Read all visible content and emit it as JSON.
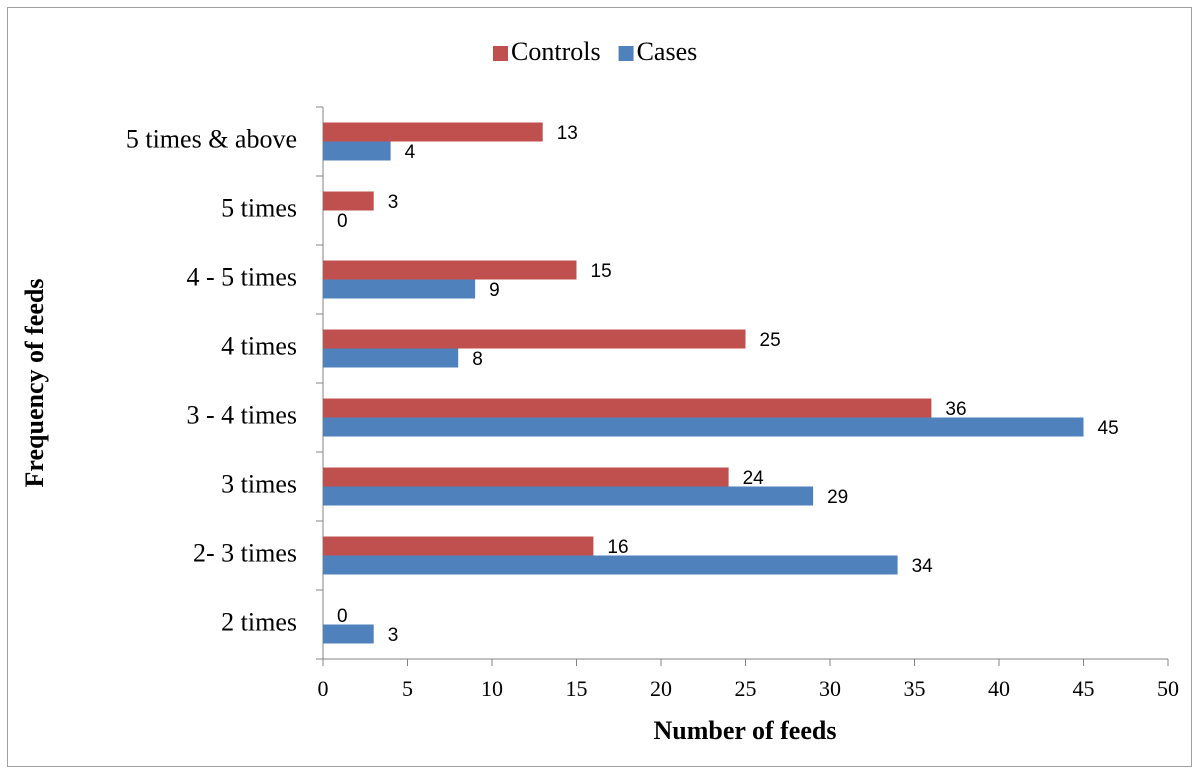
{
  "chart_data": {
    "type": "bar",
    "orientation": "horizontal",
    "x_label": "Number of feeds",
    "y_label": "Frequency of feeds",
    "categories": [
      "2 times",
      "2- 3 times",
      "3 times",
      "3 - 4 times",
      "4 times",
      "4 - 5 times",
      "5 times",
      "5 times & above"
    ],
    "series": [
      {
        "name": "Controls",
        "color": "#c0504d",
        "values": [
          0,
          16,
          24,
          36,
          25,
          15,
          3,
          13
        ]
      },
      {
        "name": "Cases",
        "color": "#4f81bd",
        "values": [
          3,
          34,
          29,
          45,
          8,
          9,
          0,
          4
        ]
      }
    ],
    "xlim": [
      0,
      50
    ],
    "xticks": [
      0,
      5,
      10,
      15,
      20,
      25,
      30,
      35,
      40,
      45,
      50
    ],
    "legend": "top",
    "grid": false
  }
}
